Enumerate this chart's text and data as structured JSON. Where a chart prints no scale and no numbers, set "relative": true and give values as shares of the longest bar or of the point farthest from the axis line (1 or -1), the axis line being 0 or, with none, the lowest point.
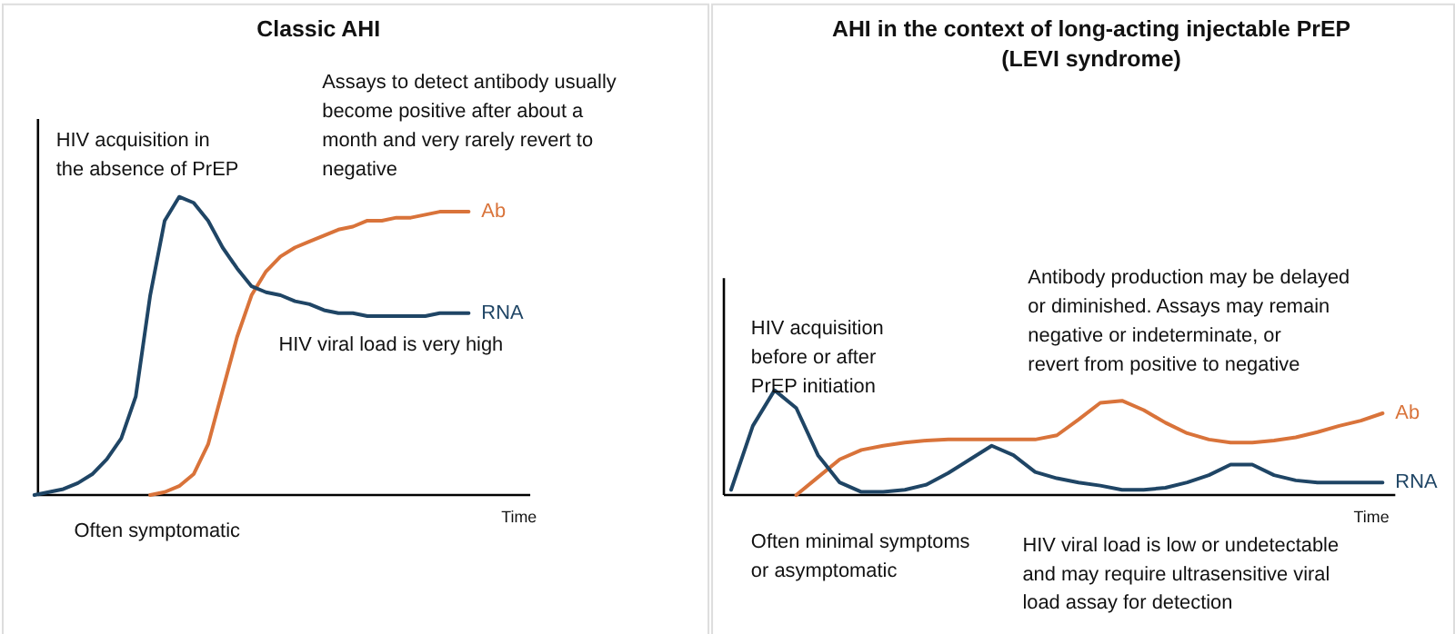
{
  "chart_data": [
    {
      "type": "line",
      "relative": true,
      "title": "Classic AHI",
      "xlabel": "Time",
      "annotations": [
        "HIV acquisition in the absence of PrEP",
        "Assays to detect antibody usually become positive after about a month and very rarely revert to negative",
        "HIV viral load is very high",
        "Often symptomatic"
      ],
      "categories": [
        null,
        null,
        null,
        null,
        null,
        null,
        null,
        null,
        null,
        null,
        null,
        null,
        null,
        null,
        null,
        null,
        null,
        null,
        null,
        null,
        null,
        null,
        null,
        null,
        null,
        null,
        null,
        null,
        null,
        null,
        null
      ],
      "series": [
        {
          "name": "Ab",
          "color": "#d9733a",
          "values": [
            null,
            null,
            null,
            null,
            null,
            null,
            null,
            null,
            0,
            0.01,
            0.03,
            0.07,
            0.17,
            0.35,
            0.53,
            0.67,
            0.75,
            0.8,
            0.83,
            0.85,
            0.87,
            0.89,
            0.9,
            0.92,
            0.92,
            0.93,
            0.93,
            0.94,
            0.95,
            0.95,
            0.95
          ]
        },
        {
          "name": "RNA",
          "color": "#1f4565",
          "values": [
            0,
            0.01,
            0.02,
            0.04,
            0.07,
            0.12,
            0.19,
            0.33,
            0.67,
            0.92,
            1,
            0.98,
            0.92,
            0.83,
            0.76,
            0.7,
            0.68,
            0.67,
            0.65,
            0.64,
            0.62,
            0.61,
            0.61,
            0.6,
            0.6,
            0.6,
            0.6,
            0.6,
            0.61,
            0.61,
            0.61
          ]
        }
      ]
    },
    {
      "type": "line",
      "relative": true,
      "title": "AHI in the context of long-acting injectable PrEP (LEVI syndrome)",
      "xlabel": "Time",
      "annotations": [
        "HIV acquisition before or after PrEP initiation",
        "Antibody production may be delayed or diminished. Assays may remain negative or indeterminate, or revert from positive to negative",
        "Often minimal symptoms or asymptomatic",
        "HIV viral load is low or undetectable and may require ultrasensitive viral load assay for detection"
      ],
      "categories": [
        null,
        null,
        null,
        null,
        null,
        null,
        null,
        null,
        null,
        null,
        null,
        null,
        null,
        null,
        null,
        null,
        null,
        null,
        null,
        null,
        null,
        null,
        null,
        null,
        null,
        null,
        null,
        null,
        null,
        null,
        null
      ],
      "series": [
        {
          "name": "Ab",
          "color": "#d9733a",
          "values": [
            null,
            null,
            null,
            0,
            0.17,
            0.34,
            0.43,
            0.47,
            0.5,
            0.52,
            0.53,
            0.53,
            0.53,
            0.53,
            0.53,
            0.57,
            0.72,
            0.88,
            0.9,
            0.81,
            0.69,
            0.59,
            0.53,
            0.5,
            0.5,
            0.52,
            0.55,
            0.6,
            0.66,
            0.71,
            0.78
          ]
        },
        {
          "name": "RNA",
          "color": "#1f4565",
          "values": [
            0.05,
            0.66,
            1,
            0.83,
            0.38,
            0.12,
            0.03,
            0.03,
            0.05,
            0.1,
            0.21,
            0.34,
            0.47,
            0.38,
            0.22,
            0.16,
            0.12,
            0.09,
            0.05,
            0.05,
            0.07,
            0.12,
            0.19,
            0.29,
            0.29,
            0.19,
            0.14,
            0.12,
            0.12,
            0.12,
            0.12
          ]
        }
      ]
    }
  ]
}
